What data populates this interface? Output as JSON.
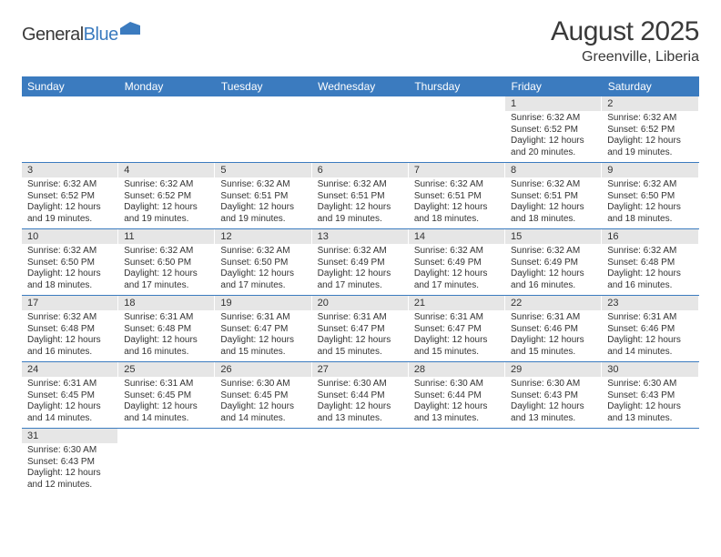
{
  "logo": {
    "text_dark": "General",
    "text_blue": "Blue"
  },
  "title": {
    "month": "August 2025",
    "location": "Greenville, Liberia"
  },
  "colors": {
    "header_bg": "#3b7bbf",
    "header_text": "#ffffff",
    "daynum_bg": "#e6e6e6",
    "row_divider": "#3b7bbf",
    "body_text": "#333333"
  },
  "weekdays": [
    "Sunday",
    "Monday",
    "Tuesday",
    "Wednesday",
    "Thursday",
    "Friday",
    "Saturday"
  ],
  "weeks": [
    [
      {
        "day": "",
        "text": ""
      },
      {
        "day": "",
        "text": ""
      },
      {
        "day": "",
        "text": ""
      },
      {
        "day": "",
        "text": ""
      },
      {
        "day": "",
        "text": ""
      },
      {
        "day": "1",
        "text": "Sunrise: 6:32 AM\nSunset: 6:52 PM\nDaylight: 12 hours and 20 minutes."
      },
      {
        "day": "2",
        "text": "Sunrise: 6:32 AM\nSunset: 6:52 PM\nDaylight: 12 hours and 19 minutes."
      }
    ],
    [
      {
        "day": "3",
        "text": "Sunrise: 6:32 AM\nSunset: 6:52 PM\nDaylight: 12 hours and 19 minutes."
      },
      {
        "day": "4",
        "text": "Sunrise: 6:32 AM\nSunset: 6:52 PM\nDaylight: 12 hours and 19 minutes."
      },
      {
        "day": "5",
        "text": "Sunrise: 6:32 AM\nSunset: 6:51 PM\nDaylight: 12 hours and 19 minutes."
      },
      {
        "day": "6",
        "text": "Sunrise: 6:32 AM\nSunset: 6:51 PM\nDaylight: 12 hours and 19 minutes."
      },
      {
        "day": "7",
        "text": "Sunrise: 6:32 AM\nSunset: 6:51 PM\nDaylight: 12 hours and 18 minutes."
      },
      {
        "day": "8",
        "text": "Sunrise: 6:32 AM\nSunset: 6:51 PM\nDaylight: 12 hours and 18 minutes."
      },
      {
        "day": "9",
        "text": "Sunrise: 6:32 AM\nSunset: 6:50 PM\nDaylight: 12 hours and 18 minutes."
      }
    ],
    [
      {
        "day": "10",
        "text": "Sunrise: 6:32 AM\nSunset: 6:50 PM\nDaylight: 12 hours and 18 minutes."
      },
      {
        "day": "11",
        "text": "Sunrise: 6:32 AM\nSunset: 6:50 PM\nDaylight: 12 hours and 17 minutes."
      },
      {
        "day": "12",
        "text": "Sunrise: 6:32 AM\nSunset: 6:50 PM\nDaylight: 12 hours and 17 minutes."
      },
      {
        "day": "13",
        "text": "Sunrise: 6:32 AM\nSunset: 6:49 PM\nDaylight: 12 hours and 17 minutes."
      },
      {
        "day": "14",
        "text": "Sunrise: 6:32 AM\nSunset: 6:49 PM\nDaylight: 12 hours and 17 minutes."
      },
      {
        "day": "15",
        "text": "Sunrise: 6:32 AM\nSunset: 6:49 PM\nDaylight: 12 hours and 16 minutes."
      },
      {
        "day": "16",
        "text": "Sunrise: 6:32 AM\nSunset: 6:48 PM\nDaylight: 12 hours and 16 minutes."
      }
    ],
    [
      {
        "day": "17",
        "text": "Sunrise: 6:32 AM\nSunset: 6:48 PM\nDaylight: 12 hours and 16 minutes."
      },
      {
        "day": "18",
        "text": "Sunrise: 6:31 AM\nSunset: 6:48 PM\nDaylight: 12 hours and 16 minutes."
      },
      {
        "day": "19",
        "text": "Sunrise: 6:31 AM\nSunset: 6:47 PM\nDaylight: 12 hours and 15 minutes."
      },
      {
        "day": "20",
        "text": "Sunrise: 6:31 AM\nSunset: 6:47 PM\nDaylight: 12 hours and 15 minutes."
      },
      {
        "day": "21",
        "text": "Sunrise: 6:31 AM\nSunset: 6:47 PM\nDaylight: 12 hours and 15 minutes."
      },
      {
        "day": "22",
        "text": "Sunrise: 6:31 AM\nSunset: 6:46 PM\nDaylight: 12 hours and 15 minutes."
      },
      {
        "day": "23",
        "text": "Sunrise: 6:31 AM\nSunset: 6:46 PM\nDaylight: 12 hours and 14 minutes."
      }
    ],
    [
      {
        "day": "24",
        "text": "Sunrise: 6:31 AM\nSunset: 6:45 PM\nDaylight: 12 hours and 14 minutes."
      },
      {
        "day": "25",
        "text": "Sunrise: 6:31 AM\nSunset: 6:45 PM\nDaylight: 12 hours and 14 minutes."
      },
      {
        "day": "26",
        "text": "Sunrise: 6:30 AM\nSunset: 6:45 PM\nDaylight: 12 hours and 14 minutes."
      },
      {
        "day": "27",
        "text": "Sunrise: 6:30 AM\nSunset: 6:44 PM\nDaylight: 12 hours and 13 minutes."
      },
      {
        "day": "28",
        "text": "Sunrise: 6:30 AM\nSunset: 6:44 PM\nDaylight: 12 hours and 13 minutes."
      },
      {
        "day": "29",
        "text": "Sunrise: 6:30 AM\nSunset: 6:43 PM\nDaylight: 12 hours and 13 minutes."
      },
      {
        "day": "30",
        "text": "Sunrise: 6:30 AM\nSunset: 6:43 PM\nDaylight: 12 hours and 13 minutes."
      }
    ],
    [
      {
        "day": "31",
        "text": "Sunrise: 6:30 AM\nSunset: 6:43 PM\nDaylight: 12 hours and 12 minutes."
      },
      {
        "day": "",
        "text": ""
      },
      {
        "day": "",
        "text": ""
      },
      {
        "day": "",
        "text": ""
      },
      {
        "day": "",
        "text": ""
      },
      {
        "day": "",
        "text": ""
      },
      {
        "day": "",
        "text": ""
      }
    ]
  ]
}
